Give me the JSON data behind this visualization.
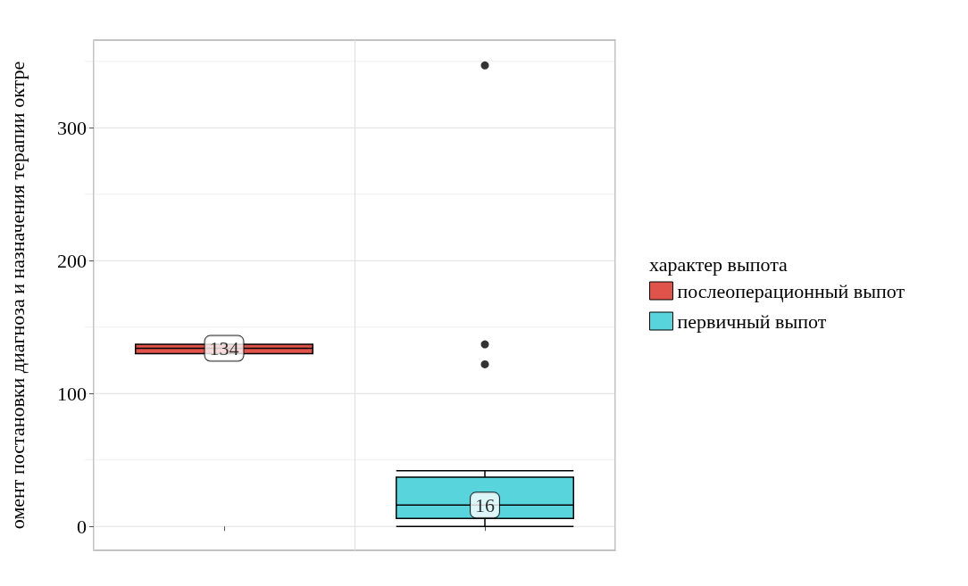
{
  "chart_data": {
    "type": "box",
    "ylabel": "омент постановки диагноза и назначения терапии октре",
    "legend_title": "характер выпота",
    "categories": [
      null,
      null
    ],
    "series": [
      {
        "name": "послеоперационный выпот",
        "color": "#e0534a",
        "boxes": [
          {
            "low": 130,
            "q1": 130,
            "median": 134,
            "q3": 137,
            "high": 137
          },
          null
        ],
        "value_labels": [
          "134",
          null
        ]
      },
      {
        "name": "первичный выпот",
        "color": "#57d4dc",
        "boxes": [
          null,
          {
            "low": 0,
            "q1": 6,
            "median": 16,
            "q3": 37,
            "high": 42,
            "outliers": [
              122,
              137,
              347
            ]
          }
        ],
        "value_labels": [
          null,
          "16"
        ]
      }
    ],
    "ylim": [
      -18,
      366
    ],
    "yticks": [
      0,
      100,
      200,
      300
    ],
    "grid": true,
    "legend": "right",
    "tick_labels": "y"
  }
}
